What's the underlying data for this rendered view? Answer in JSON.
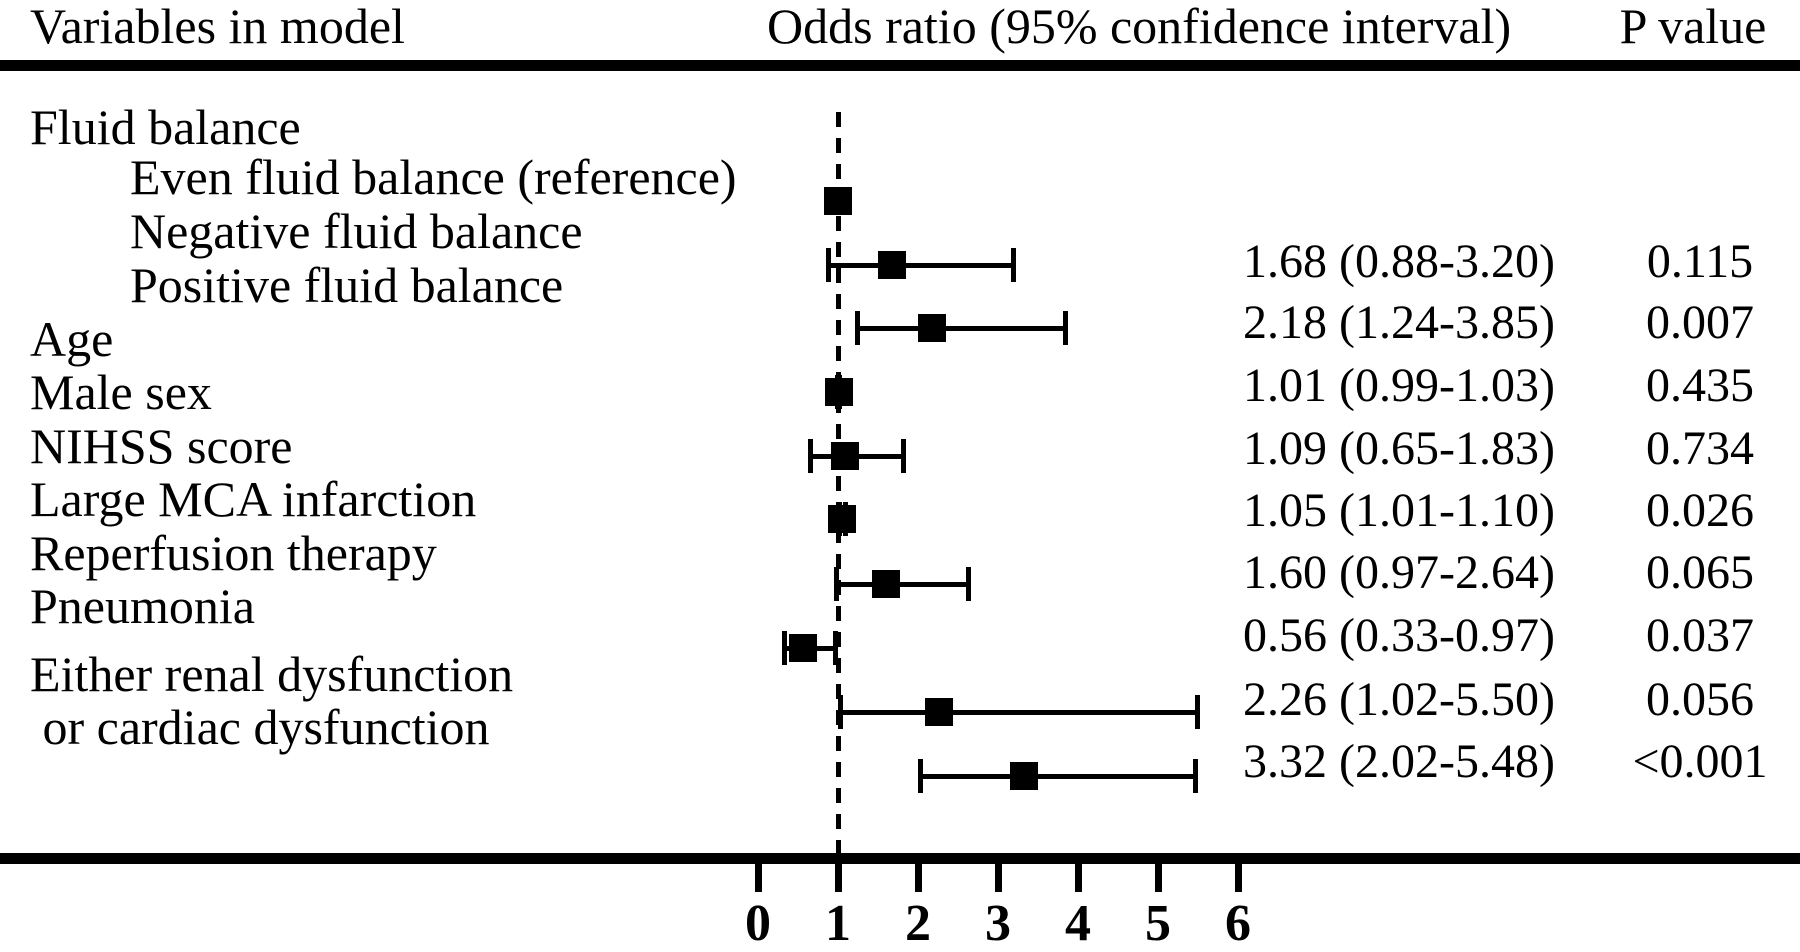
{
  "header": {
    "variables": "Variables in model",
    "odds_ratio": "Odds ratio (95% confidence interval)",
    "p_value": "P value"
  },
  "chart_data": {
    "type": "scatter",
    "subtype": "forest-plot",
    "title": "",
    "xlabel": "",
    "ylabel": "",
    "x_axis": {
      "range": [
        0,
        6
      ],
      "ticks": [
        0,
        1,
        2,
        3,
        4,
        5,
        6
      ],
      "tick_labels": [
        "0",
        "1",
        "2",
        "3",
        "4",
        "5",
        "6"
      ],
      "reference_line": 1,
      "reference_line_style": "dashed"
    },
    "colors": {
      "foreground": "#000000",
      "background": "#ffffff"
    },
    "rows": [
      {
        "label": "Fluid balance",
        "indent": 0,
        "or": null,
        "ci": null,
        "or_text": "",
        "p": ""
      },
      {
        "label": "Even fluid balance (reference)",
        "indent": 1,
        "or": 1.0,
        "ci": null,
        "reference": true,
        "or_text": "",
        "p": ""
      },
      {
        "label": "Negative fluid balance",
        "indent": 1,
        "or": 1.68,
        "ci": [
          0.88,
          3.2
        ],
        "or_text": "1.68 (0.88-3.20)",
        "p": "0.115"
      },
      {
        "label": "Positive fluid balance",
        "indent": 1,
        "or": 2.18,
        "ci": [
          1.24,
          3.85
        ],
        "or_text": "2.18 (1.24-3.85)",
        "p": "0.007"
      },
      {
        "label": "Age",
        "indent": 0,
        "or": 1.01,
        "ci": [
          0.99,
          1.03
        ],
        "or_text": "1.01 (0.99-1.03)",
        "p": "0.435"
      },
      {
        "label": "Male sex",
        "indent": 0,
        "or": 1.09,
        "ci": [
          0.65,
          1.83
        ],
        "or_text": "1.09 (0.65-1.83)",
        "p": "0.734"
      },
      {
        "label": "NIHSS score",
        "indent": 0,
        "or": 1.05,
        "ci": [
          1.01,
          1.1
        ],
        "or_text": "1.05 (1.01-1.10)",
        "p": "0.026"
      },
      {
        "label": "Large MCA infarction",
        "indent": 0,
        "or": 1.6,
        "ci": [
          0.97,
          2.64
        ],
        "or_text": "1.60 (0.97-2.64)",
        "p": "0.065"
      },
      {
        "label": "Reperfusion therapy",
        "indent": 0,
        "or": 0.56,
        "ci": [
          0.33,
          0.97
        ],
        "or_text": "0.56 (0.33-0.97)",
        "p": "0.037"
      },
      {
        "label": "Pneumonia",
        "indent": 0,
        "or": 2.26,
        "ci": [
          1.02,
          5.5
        ],
        "or_text": "2.26 (1.02-5.50)",
        "p": "0.056"
      },
      {
        "label": "Either renal dysfunction",
        "label_line2": " or cardiac dysfunction",
        "indent": 0,
        "or": 3.32,
        "ci": [
          2.02,
          5.48
        ],
        "or_text": "3.32 (2.02-5.48)",
        "p": "<0.001"
      }
    ]
  }
}
